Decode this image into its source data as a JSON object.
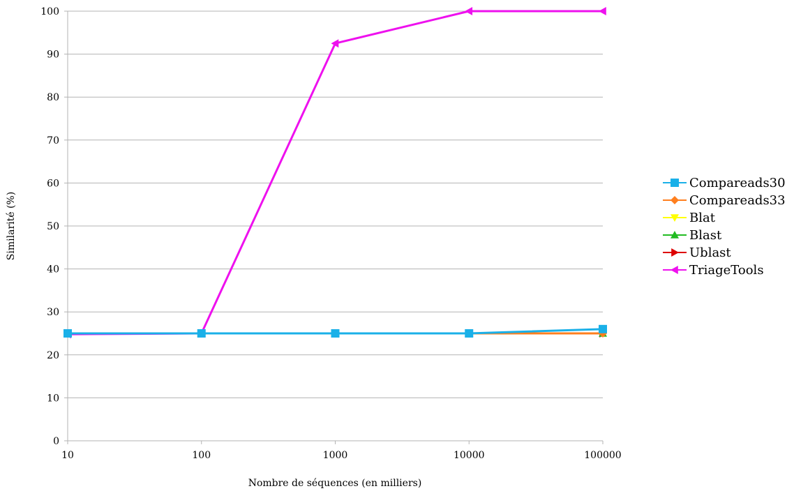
{
  "chart_data": {
    "type": "line",
    "title": "",
    "xlabel": "Nombre de séquences (en milliers)",
    "ylabel": "Similarité (%)",
    "x_scale": "log",
    "categories": [
      "10",
      "100",
      "1000",
      "10000",
      "100000"
    ],
    "ylim": [
      0,
      100
    ],
    "yticks": [
      "0",
      "10",
      "20",
      "30",
      "40",
      "50",
      "60",
      "70",
      "80",
      "90",
      "100"
    ],
    "grid": "horizontal",
    "legend_position": "right",
    "series": [
      {
        "name": "Compareads30",
        "color": "#1ab0e8",
        "marker": "square",
        "values": [
          25,
          25,
          25,
          25,
          26
        ]
      },
      {
        "name": "Compareads33",
        "color": "#ff7f1e",
        "marker": "diamond",
        "values": [
          25,
          25,
          25,
          25,
          25
        ]
      },
      {
        "name": "Blat",
        "color": "#ffff00",
        "marker": "triangle-down",
        "values": [
          25,
          25,
          25,
          25,
          25
        ]
      },
      {
        "name": "Blast",
        "color": "#22bb22",
        "marker": "triangle-up",
        "values": [
          25,
          25,
          25,
          25,
          25
        ]
      },
      {
        "name": "Ublast",
        "color": "#dd0000",
        "marker": "triangle-right",
        "values": [
          25,
          25,
          25,
          25,
          25
        ]
      },
      {
        "name": "TriageTools",
        "color": "#ee11ee",
        "marker": "triangle-left",
        "values": [
          24.8,
          25,
          92.5,
          100,
          100
        ]
      }
    ]
  }
}
